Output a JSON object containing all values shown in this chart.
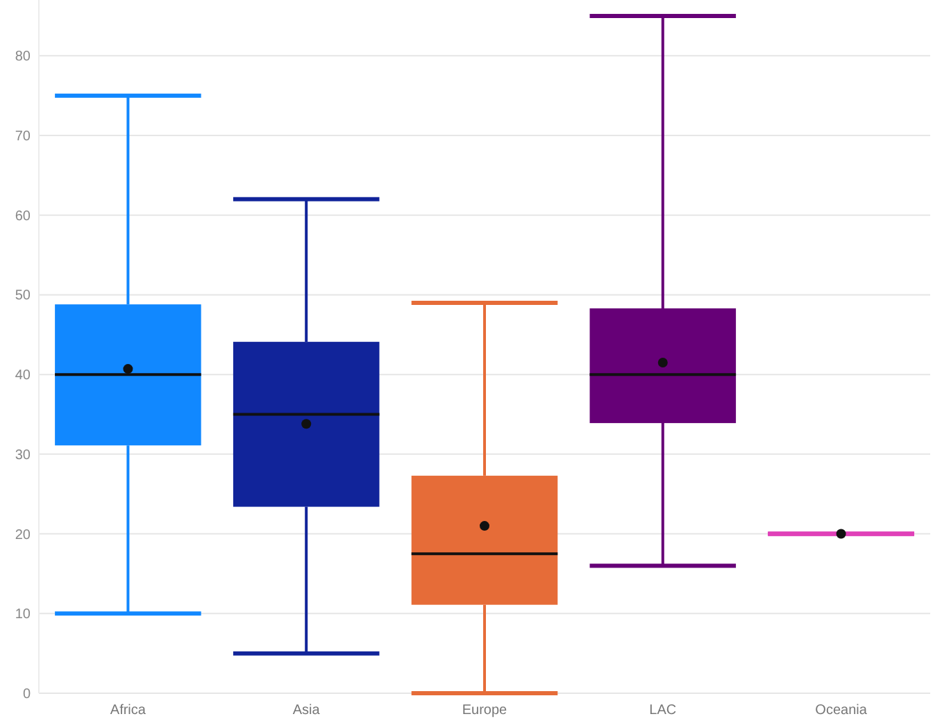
{
  "chart_data": {
    "type": "box",
    "categories": [
      "Africa",
      "Asia",
      "Europe",
      "LAC",
      "Oceania"
    ],
    "colors": [
      "#1188ff",
      "#11249a",
      "#e66c38",
      "#660077",
      "#e040b8"
    ],
    "boxes": [
      {
        "low": 10,
        "q1": 31.1,
        "median": 40,
        "q3": 48.8,
        "high": 75,
        "mean": 40.7
      },
      {
        "low": 5,
        "q1": 23.4,
        "median": 35,
        "q3": 44.1,
        "high": 62,
        "mean": 33.8
      },
      {
        "low": 0,
        "q1": 11.1,
        "median": 17.5,
        "q3": 27.3,
        "high": 49,
        "mean": 21
      },
      {
        "low": 16,
        "q1": 33.9,
        "median": 40,
        "q3": 48.3,
        "high": 85,
        "mean": 41.5
      },
      {
        "low": 20,
        "q1": 20,
        "median": 20,
        "q3": 20,
        "high": 20,
        "mean": 20
      }
    ],
    "ylim": [
      0,
      87
    ],
    "yticks": [
      0,
      10,
      20,
      30,
      40,
      50,
      60,
      70,
      80
    ],
    "grid": "y"
  }
}
